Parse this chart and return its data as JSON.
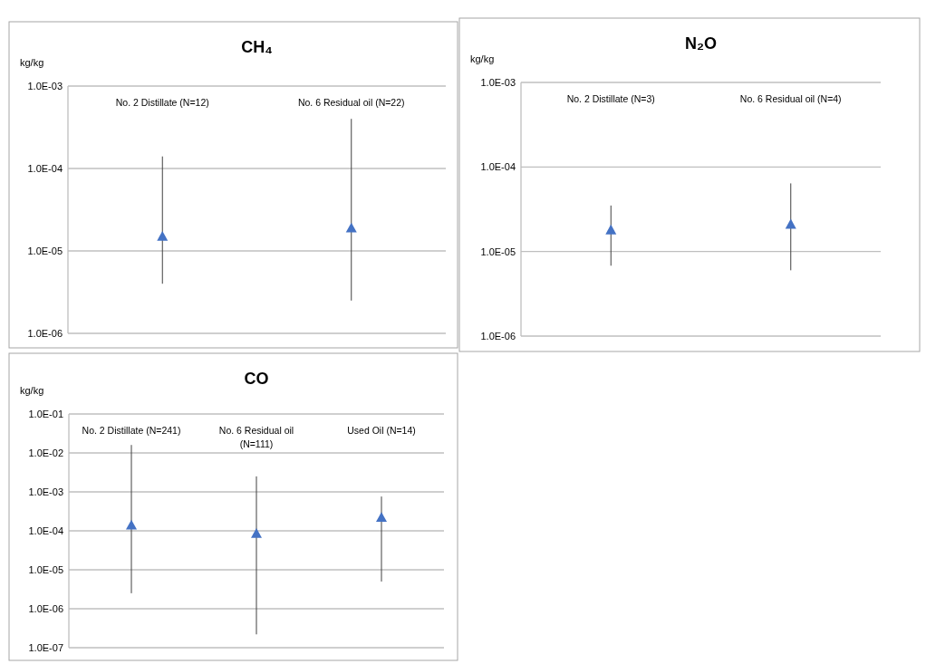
{
  "chart_data": [
    {
      "type": "scatter",
      "title": "CH₄",
      "ylabel": "kg/kg",
      "categories": [
        "No. 2 Distillate (N=12)",
        "No. 6 Residual oil (N=22)"
      ],
      "series": [
        {
          "color": "#4472c4",
          "values": [
            1.5e-05,
            1.9e-05
          ],
          "errors": [
            [
              4e-06,
              0.00014
            ],
            [
              2.5e-06,
              0.0004
            ]
          ]
        }
      ],
      "log": "y",
      "ylim": [
        1e-06,
        0.001
      ],
      "yticks": [
        {
          "value": 1e-06,
          "label": "1.0E-06"
        },
        {
          "value": 1e-05,
          "label": "1.0E-05"
        },
        {
          "value": 0.0001,
          "label": "1.0E-04"
        },
        {
          "value": 0.001,
          "label": "1.0E-03"
        }
      ],
      "grid": "y",
      "marker": "triangle"
    },
    {
      "type": "scatter",
      "title": "N₂O",
      "ylabel": "kg/kg",
      "categories": [
        "No. 2 Distillate (N=3)",
        "No. 6 Residual oil (N=4)"
      ],
      "series": [
        {
          "color": "#4472c4",
          "values": [
            1.8e-05,
            2.1e-05
          ],
          "errors": [
            [
              6.8e-06,
              3.5e-05
            ],
            [
              6e-06,
              6.4e-05
            ]
          ]
        }
      ],
      "log": "y",
      "ylim": [
        1e-06,
        0.001
      ],
      "yticks": [
        {
          "value": 1e-06,
          "label": "1.0E-06"
        },
        {
          "value": 1e-05,
          "label": "1.0E-05"
        },
        {
          "value": 0.0001,
          "label": "1.0E-04"
        },
        {
          "value": 0.001,
          "label": "1.0E-03"
        }
      ],
      "grid": "y",
      "marker": "triangle"
    },
    {
      "type": "scatter",
      "title": "CO",
      "ylabel": "kg/kg",
      "categories": [
        "No. 2 Distillate (N=241)",
        "No. 6 Residual oil (N=111)",
        "Used Oil (N=14)"
      ],
      "series": [
        {
          "color": "#4472c4",
          "values": [
            0.00014,
            8.5e-05,
            0.00022
          ],
          "errors": [
            [
              2.5e-06,
              0.016
            ],
            [
              2.2e-07,
              0.0025
            ],
            [
              5e-06,
              0.00076
            ]
          ]
        }
      ],
      "log": "y",
      "ylim": [
        1e-07,
        0.1
      ],
      "yticks": [
        {
          "value": 1e-07,
          "label": "1.0E-07"
        },
        {
          "value": 1e-06,
          "label": "1.0E-06"
        },
        {
          "value": 1e-05,
          "label": "1.0E-05"
        },
        {
          "value": 0.0001,
          "label": "1.0E-04"
        },
        {
          "value": 0.001,
          "label": "1.0E-03"
        },
        {
          "value": 0.01,
          "label": "1.0E-02"
        },
        {
          "value": 0.1,
          "label": "1.0E-01"
        }
      ],
      "grid": "y",
      "marker": "triangle"
    }
  ]
}
